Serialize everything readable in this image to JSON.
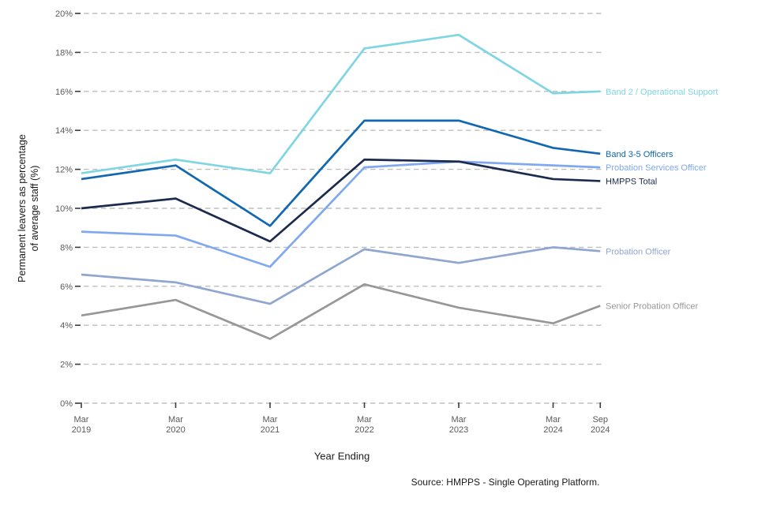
{
  "chart_data": {
    "type": "line",
    "title": "",
    "xlabel": "Year Ending",
    "ylabel": "Permanent leavers as percentage\nof average staff (%)",
    "source_note": "Source: HMPPS - Single Operating Platform.",
    "x": [
      2019.25,
      2020.25,
      2021.25,
      2022.25,
      2023.25,
      2024.25,
      2024.75
    ],
    "x_tick_labels": [
      [
        "Mar",
        "2019"
      ],
      [
        "Mar",
        "2020"
      ],
      [
        "Mar",
        "2021"
      ],
      [
        "Mar",
        "2022"
      ],
      [
        "Mar",
        "2023"
      ],
      [
        "Mar",
        "2024"
      ],
      [
        "Sep",
        "2024"
      ]
    ],
    "ylim": [
      0,
      20
    ],
    "y_tick_step": 2,
    "y_tick_suffix": "%",
    "grid": "horizontal-dashed",
    "legend_position": "right-of-line-ends",
    "series": [
      {
        "name": "Band 2 / Operational Support",
        "color": "#7FD6E2",
        "values": [
          11.8,
          12.5,
          11.8,
          18.2,
          18.9,
          15.9,
          16.0
        ]
      },
      {
        "name": "Band 3-5 Officers",
        "color": "#1168B0",
        "values": [
          11.5,
          12.2,
          9.1,
          14.5,
          14.5,
          13.1,
          12.8
        ]
      },
      {
        "name": "Probation Services Officer",
        "color": "#7FA8F0",
        "values": [
          8.8,
          8.6,
          7.0,
          12.1,
          12.4,
          12.2,
          12.1
        ]
      },
      {
        "name": "HMPPS Total",
        "color": "#1C2B4D",
        "values": [
          10.0,
          10.5,
          8.3,
          12.5,
          12.4,
          11.5,
          11.4
        ]
      },
      {
        "name": "Probation Officer",
        "color": "#8FA6CF",
        "values": [
          6.6,
          6.2,
          5.1,
          7.9,
          7.2,
          8.0,
          7.8
        ]
      },
      {
        "name": "Senior Probation Officer",
        "color": "#979797",
        "values": [
          4.5,
          5.3,
          3.3,
          6.1,
          4.9,
          4.1,
          5.0
        ]
      }
    ],
    "style": {
      "grid_color": "#bfbfbf",
      "tick_mark_color": "#3d3d3d",
      "tick_label_color": "#5a5a5a"
    }
  }
}
